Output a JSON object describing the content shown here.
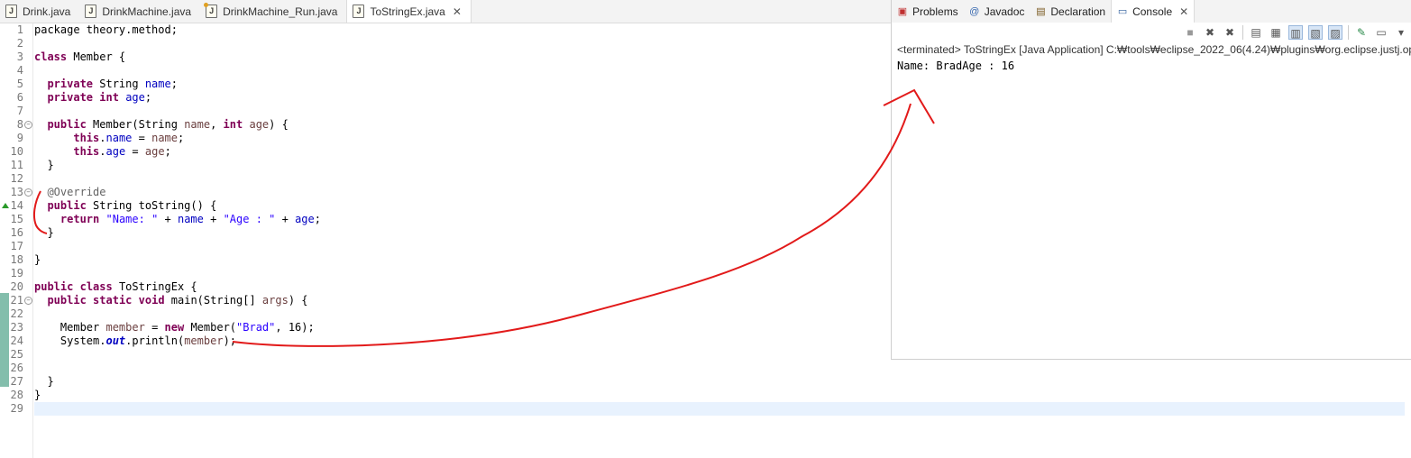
{
  "editor_tabs": [
    {
      "label": "Drink.java",
      "active": false
    },
    {
      "label": "DrinkMachine.java",
      "active": false
    },
    {
      "label": "DrinkMachine_Run.java",
      "active": false
    },
    {
      "label": "ToStringEx.java",
      "active": true
    }
  ],
  "console_tabs": [
    {
      "label": "Problems",
      "icon": "problems-icon"
    },
    {
      "label": "Javadoc",
      "icon": "at-icon"
    },
    {
      "label": "Declaration",
      "icon": "declaration-icon"
    },
    {
      "label": "Console",
      "icon": "console-icon"
    }
  ],
  "console": {
    "terminated": "<terminated> ToStringEx [Java Application] C:₩tools₩eclipse_2022_06(4.24)₩plugins₩org.eclipse.justj.ope",
    "output": "Name: BradAge : 16"
  },
  "code": {
    "l1": "package theory.method;",
    "l3a": "class",
    "l3b": " Member {",
    "l5a": "  ",
    "l5b": "private",
    "l5c": " String ",
    "l5d": "name",
    "l5e": ";",
    "l6a": "  ",
    "l6b": "private",
    "l6c": " ",
    "l6d": "int",
    "l6e": " ",
    "l6f": "age",
    "l6g": ";",
    "l8a": "  ",
    "l8b": "public",
    "l8c": " Member(String ",
    "l8d": "name",
    "l8e": ", ",
    "l8f": "int",
    "l8g": " ",
    "l8h": "age",
    "l8i": ") {",
    "l9a": "      ",
    "l9b": "this",
    "l9c": ".",
    "l9d": "name",
    "l9e": " = ",
    "l9f": "name",
    "l9g": ";",
    "l10a": "      ",
    "l10b": "this",
    "l10c": ".",
    "l10d": "age",
    "l10e": " = ",
    "l10f": "age",
    "l10g": ";",
    "l11": "  }",
    "l13a": "  ",
    "l13b": "@Override",
    "l14a": "  ",
    "l14b": "public",
    "l14c": " String toString() {",
    "l15a": "    ",
    "l15b": "return",
    "l15c": " ",
    "l15d": "\"Name: \"",
    "l15e": " + ",
    "l15f": "name",
    "l15g": " + ",
    "l15h": "\"Age : \"",
    "l15i": " + ",
    "l15j": "age",
    "l15k": ";",
    "l16": "  }",
    "l18": "}",
    "l20a": "public",
    "l20b": " ",
    "l20c": "class",
    "l20d": " ToStringEx {",
    "l21a": "  ",
    "l21b": "public",
    "l21c": " ",
    "l21d": "static",
    "l21e": " ",
    "l21f": "void",
    "l21g": " main(String[] ",
    "l21h": "args",
    "l21i": ") {",
    "l23a": "    Member ",
    "l23b": "member",
    "l23c": " = ",
    "l23d": "new",
    "l23e": " Member(",
    "l23f": "\"Brad\"",
    "l23g": ", 16);",
    "l24a": "    System.",
    "l24b": "out",
    "l24c": ".println(",
    "l24d": "member",
    "l24e": ");",
    "l27": "  }",
    "l28": "}"
  },
  "line_numbers": [
    "1",
    "2",
    "3",
    "4",
    "5",
    "6",
    "7",
    "8",
    "9",
    "10",
    "11",
    "12",
    "13",
    "14",
    "15",
    "16",
    "17",
    "18",
    "19",
    "20",
    "21",
    "22",
    "23",
    "24",
    "25",
    "26",
    "27",
    "28",
    "29"
  ]
}
